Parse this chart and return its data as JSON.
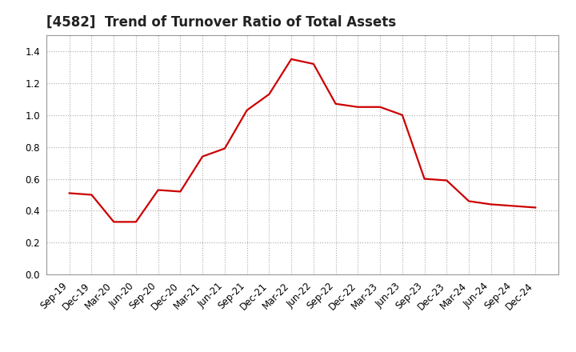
{
  "title": "[4582]  Trend of Turnover Ratio of Total Assets",
  "title_fontsize": 12,
  "x_labels": [
    "Sep-19",
    "Dec-19",
    "Mar-20",
    "Jun-20",
    "Sep-20",
    "Dec-20",
    "Mar-21",
    "Jun-21",
    "Sep-21",
    "Dec-21",
    "Mar-22",
    "Jun-22",
    "Sep-22",
    "Dec-22",
    "Mar-23",
    "Jun-23",
    "Sep-23",
    "Dec-23",
    "Mar-24",
    "Jun-24",
    "Sep-24",
    "Dec-24"
  ],
  "y_values": [
    0.51,
    0.5,
    0.33,
    0.33,
    0.53,
    0.52,
    0.74,
    0.79,
    1.03,
    1.13,
    1.35,
    1.32,
    1.07,
    1.05,
    1.05,
    1.0,
    0.6,
    0.59,
    0.46,
    0.44,
    0.43,
    0.42
  ],
  "line_color": "#cc0000",
  "line_width": 1.6,
  "ylim": [
    0.0,
    1.5
  ],
  "yticks": [
    0.0,
    0.2,
    0.4,
    0.6,
    0.8,
    1.0,
    1.2,
    1.4
  ],
  "background_color": "#ffffff",
  "plot_bg_color": "#ffffff",
  "grid_color": "#aaaaaa",
  "title_color": "#222222",
  "tick_fontsize": 8.5,
  "ylabel_pad": 5
}
